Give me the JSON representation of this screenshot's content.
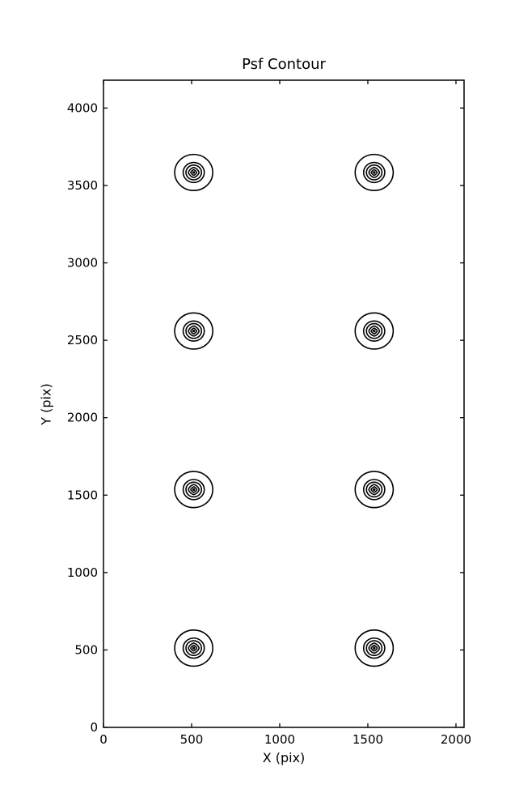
{
  "figure": {
    "background_color": "#ffffff",
    "line_color": "#000000"
  },
  "chart_data": {
    "type": "contour",
    "title": "Psf Contour",
    "xlabel": "X (pix)",
    "ylabel": "Y (pix)",
    "xlim": [
      0,
      2046
    ],
    "ylim": [
      0,
      4180
    ],
    "xticks": [
      0,
      500,
      1000,
      1500,
      2000
    ],
    "yticks": [
      0,
      500,
      1000,
      1500,
      2000,
      2500,
      3000,
      3500,
      4000
    ],
    "grid": false,
    "legend": null,
    "line_color": "#000000",
    "psf_centers": [
      {
        "x": 512,
        "y": 512
      },
      {
        "x": 1536,
        "y": 512
      },
      {
        "x": 512,
        "y": 1536
      },
      {
        "x": 1536,
        "y": 1536
      },
      {
        "x": 512,
        "y": 2560
      },
      {
        "x": 1536,
        "y": 2560
      },
      {
        "x": 512,
        "y": 3584
      },
      {
        "x": 1536,
        "y": 3584
      }
    ],
    "contour_levels": [
      {
        "shape": "ellipse",
        "radius": 108
      },
      {
        "shape": "ellipse",
        "radius": 60
      },
      {
        "shape": "ellipse",
        "radius": 44
      },
      {
        "shape": "diamond",
        "radius": 30
      },
      {
        "shape": "diamond",
        "radius": 17
      },
      {
        "shape": "dot",
        "radius": 7
      }
    ]
  }
}
